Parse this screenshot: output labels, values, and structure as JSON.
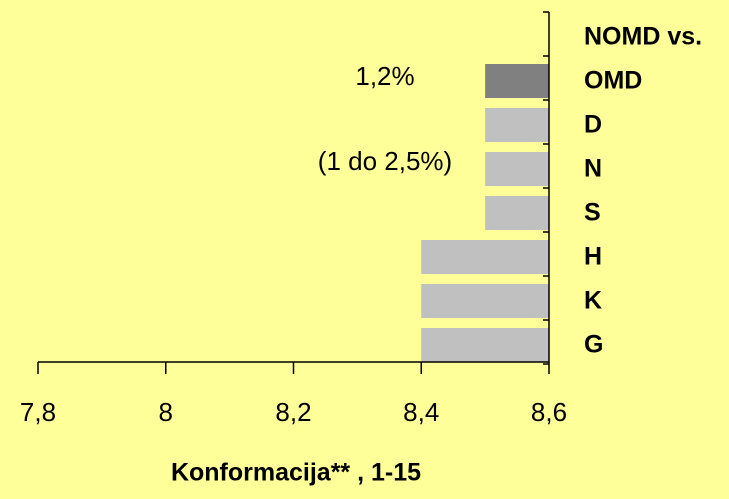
{
  "chart_data": {
    "type": "hbar",
    "categories": [
      "NOMD vs.",
      "OMD",
      "D",
      "N",
      "S",
      "H",
      "K",
      "G"
    ],
    "values": [
      null,
      8.5,
      8.5,
      8.5,
      8.5,
      8.4,
      8.4,
      8.4
    ],
    "colors": [
      null,
      "#808080",
      "#c0c0c0",
      "#c0c0c0",
      "#c0c0c0",
      "#c0c0c0",
      "#c0c0c0",
      "#c0c0c0"
    ],
    "xlim": [
      7.8,
      8.6
    ],
    "xticks": [
      {
        "value": 7.8,
        "label": "7,8"
      },
      8,
      {
        "value": 8.2,
        "label": "8,2"
      },
      {
        "value": 8.4,
        "label": "8,4"
      },
      {
        "value": 8.6,
        "label": "8,6"
      }
    ],
    "x_label": "Konformacija** , 1-15",
    "annotations": [
      "1,2%",
      "(1 do 2,5%)"
    ]
  }
}
